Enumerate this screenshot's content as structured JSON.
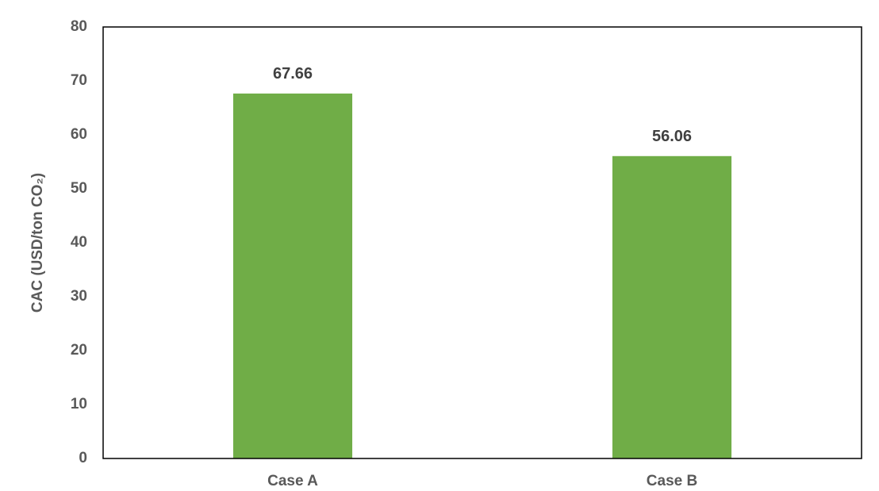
{
  "chart_data": {
    "type": "bar",
    "y_label": "CAC (USD/ton CO₂)",
    "categories": [
      "Case A",
      "Case B"
    ],
    "values": [
      67.66,
      56.06
    ],
    "color": "#70ad47",
    "ylim": [
      0,
      80
    ],
    "yticks": [
      0,
      10,
      20,
      30,
      40,
      50,
      60,
      70,
      80
    ],
    "grid": false
  }
}
